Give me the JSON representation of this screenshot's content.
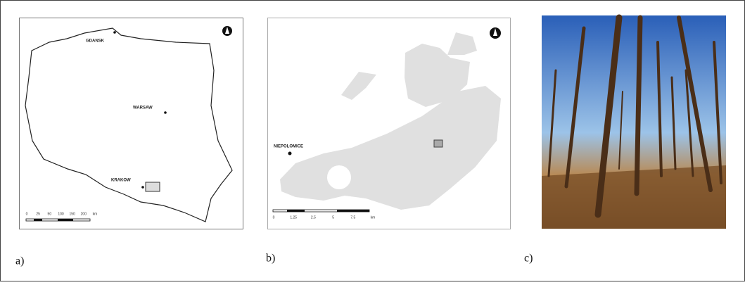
{
  "panel_a": {
    "label": "a)",
    "places": [
      "GDANSK",
      "WARSAW",
      "KRAKOW"
    ],
    "scale_labels": [
      "0",
      "25",
      "50",
      "100",
      "150",
      "200",
      "km"
    ]
  },
  "panel_b": {
    "label": "b)",
    "places": [
      "NIEPOLOMICE"
    ],
    "scale_labels": [
      "0",
      "1.25",
      "2.5",
      "5",
      "7.5",
      "km"
    ]
  },
  "panel_c": {
    "label": "c)"
  }
}
